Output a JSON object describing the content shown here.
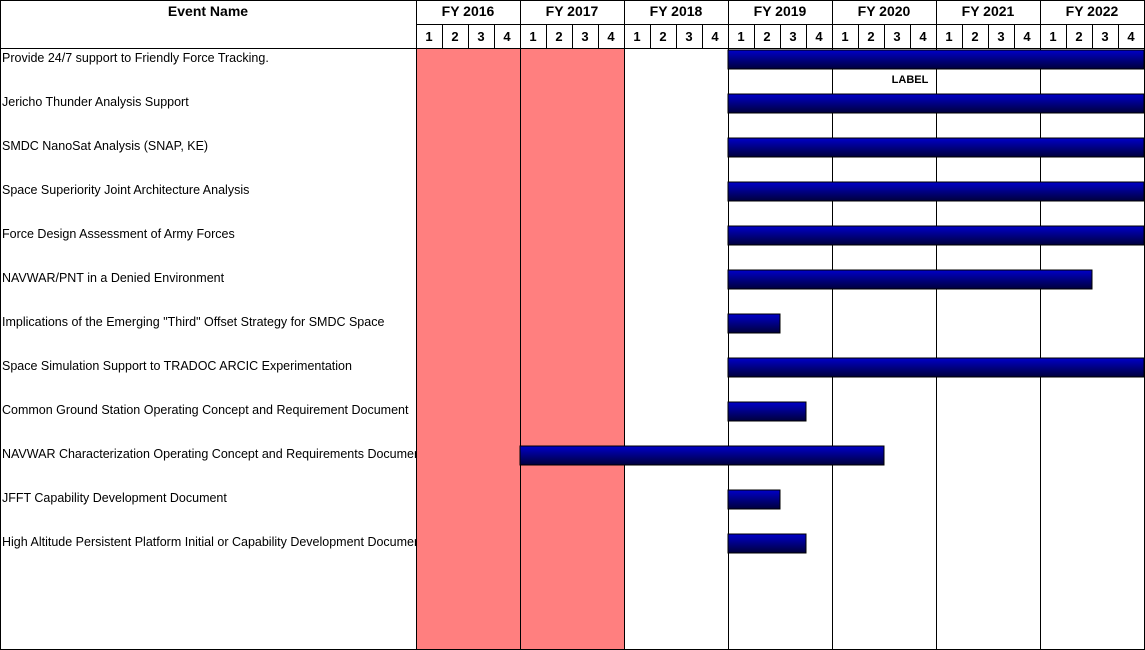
{
  "chart_data": {
    "type": "gantt",
    "column_header": "Event Name",
    "fiscal_years": [
      "FY 2016",
      "FY 2017",
      "FY 2018",
      "FY 2019",
      "FY 2020",
      "FY 2021",
      "FY 2022"
    ],
    "quarters": [
      "1",
      "2",
      "3",
      "4"
    ],
    "highlight_fiscal_years": [
      "FY 2016",
      "FY 2017"
    ],
    "highlight_color": "#ff7f7f",
    "bar_color_top": "#0000c8",
    "bar_color_bottom": "#00003c",
    "annotation": {
      "text": "LABEL",
      "row": 0,
      "fy": "FY 2020",
      "quarter": 4
    },
    "events": [
      {
        "name": "Provide 24/7 support to Friendly Force Tracking.",
        "start_fy": "FY 2019",
        "start_q": 1,
        "end_fy": "FY 2022",
        "end_q": 4
      },
      {
        "name": "Jericho Thunder Analysis Support",
        "start_fy": "FY 2019",
        "start_q": 1,
        "end_fy": "FY 2022",
        "end_q": 4
      },
      {
        "name": "SMDC NanoSat Analysis (SNAP, KE)",
        "start_fy": "FY 2019",
        "start_q": 1,
        "end_fy": "FY 2022",
        "end_q": 4
      },
      {
        "name": "Space Superiority Joint Architecture Analysis",
        "start_fy": "FY 2019",
        "start_q": 1,
        "end_fy": "FY 2022",
        "end_q": 4
      },
      {
        "name": "Force Design Assessment of Army Forces",
        "start_fy": "FY 2019",
        "start_q": 1,
        "end_fy": "FY 2022",
        "end_q": 4
      },
      {
        "name": "NAVWAR/PNT in a Denied Environment",
        "start_fy": "FY 2019",
        "start_q": 1,
        "end_fy": "FY 2022",
        "end_q": 2
      },
      {
        "name": "Implications of the Emerging \"Third\" Offset Strategy for SMDC Space",
        "start_fy": "FY 2019",
        "start_q": 1,
        "end_fy": "FY 2019",
        "end_q": 2
      },
      {
        "name": "Space Simulation Support to TRADOC ARCIC Experimentation",
        "start_fy": "FY 2019",
        "start_q": 1,
        "end_fy": "FY 2022",
        "end_q": 4
      },
      {
        "name": "Common Ground Station Operating Concept and Requirement Document",
        "start_fy": "FY 2019",
        "start_q": 1,
        "end_fy": "FY 2019",
        "end_q": 3
      },
      {
        "name": "NAVWAR Characterization Operating Concept and Requirements Document",
        "start_fy": "FY 2017",
        "start_q": 1,
        "end_fy": "FY 2020",
        "end_q": 2
      },
      {
        "name": "JFFT Capability Development Document",
        "start_fy": "FY 2019",
        "start_q": 1,
        "end_fy": "FY 2019",
        "end_q": 2
      },
      {
        "name": "High Altitude Persistent Platform Initial or Capability Development Document",
        "start_fy": "FY 2019",
        "start_q": 1,
        "end_fy": "FY 2019",
        "end_q": 3
      }
    ]
  }
}
